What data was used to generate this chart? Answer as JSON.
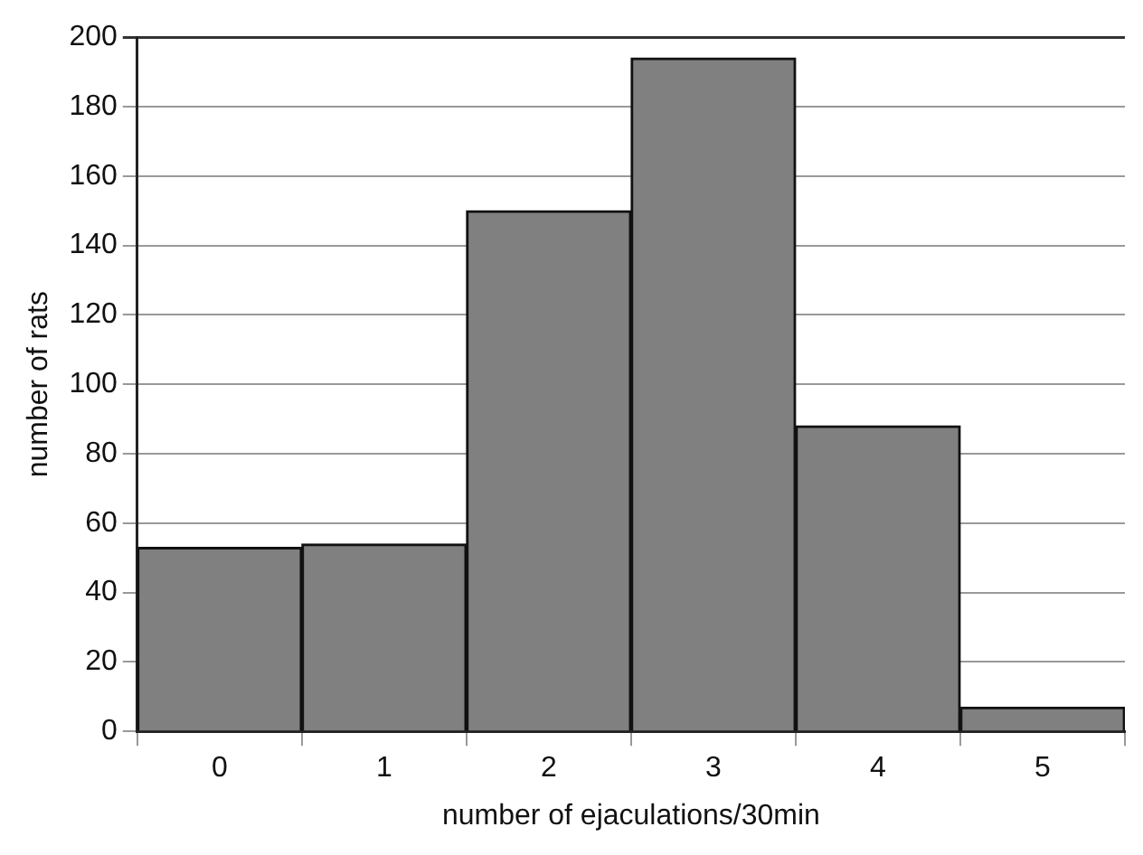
{
  "chart_data": {
    "type": "bar",
    "xlabel": "number of ejaculations/30min",
    "ylabel": "number of rats",
    "categories": [
      "0",
      "1",
      "2",
      "3",
      "4",
      "5"
    ],
    "values": [
      53,
      54,
      150,
      194,
      88,
      7
    ],
    "color": "#808080",
    "ylim": [
      0,
      200
    ],
    "yticks": [
      0,
      20,
      40,
      60,
      80,
      100,
      120,
      140,
      160,
      180,
      200
    ],
    "grid": "y"
  }
}
